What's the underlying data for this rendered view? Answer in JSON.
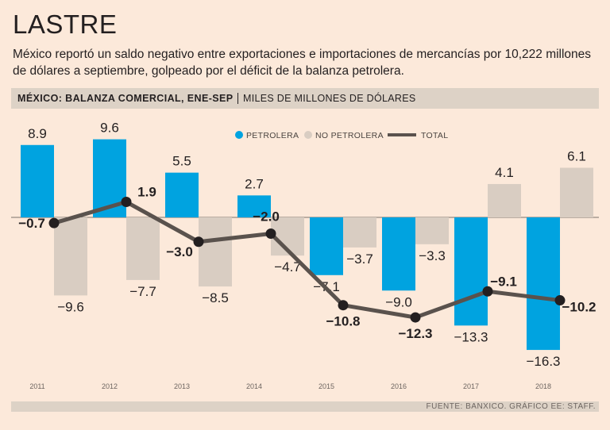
{
  "header": {
    "title": "LASTRE",
    "subtitle": "México reportó un saldo negativo entre exportaciones e importaciones de mercancías por 10,222 millones de dólares a septiembre, golpeado por el déficit de la balanza petrolera.",
    "band_title": "MÉXICO: BALANZA COMERCIAL, ENE-SEP",
    "band_unit": "MILES DE MILLONES DE DÓLARES"
  },
  "footer": {
    "source": "FUENTE: BANXICO. GRÁFICO EE: STAFF."
  },
  "colors": {
    "petrolera": "#00a3e0",
    "no_petrolera": "#d9cdc2",
    "total": "#5a524d",
    "marker": "#231f20"
  },
  "chart_data": {
    "type": "bar",
    "title": "MÉXICO: BALANZA COMERCIAL, ENE-SEP",
    "ylabel": "MILES DE MILLONES DE DÓLARES",
    "categories": [
      "2011",
      "2012",
      "2013",
      "2014",
      "2015",
      "2016",
      "2017",
      "2018"
    ],
    "ylim": [
      -18,
      11
    ],
    "series": [
      {
        "name": "PETROLERA",
        "kind": "bar",
        "values": [
          8.9,
          9.6,
          5.5,
          2.7,
          -7.1,
          -9.0,
          -13.3,
          -16.3
        ],
        "labels": [
          "8.9",
          "9.6",
          "5.5",
          "2.7",
          "−7.1",
          "−9.0",
          "−13.3",
          "−16.3"
        ]
      },
      {
        "name": "NO PETROLERA",
        "kind": "bar",
        "values": [
          -9.6,
          -7.7,
          -8.5,
          -4.7,
          -3.7,
          -3.3,
          4.1,
          6.1
        ],
        "labels": [
          "−9.6",
          "−7.7",
          "−8.5",
          "−4.7",
          "−3.7",
          "−3.3",
          "4.1",
          "6.1"
        ]
      },
      {
        "name": "TOTAL",
        "kind": "line",
        "values": [
          -0.7,
          1.9,
          -3.0,
          -2.0,
          -10.8,
          -12.3,
          -9.1,
          -10.2
        ],
        "labels": [
          "−0.7",
          "1.9",
          "−3.0",
          "−2.0",
          "−10.8",
          "−12.3",
          "−9.1",
          "−10.2"
        ]
      }
    ],
    "legend": "top-center"
  }
}
